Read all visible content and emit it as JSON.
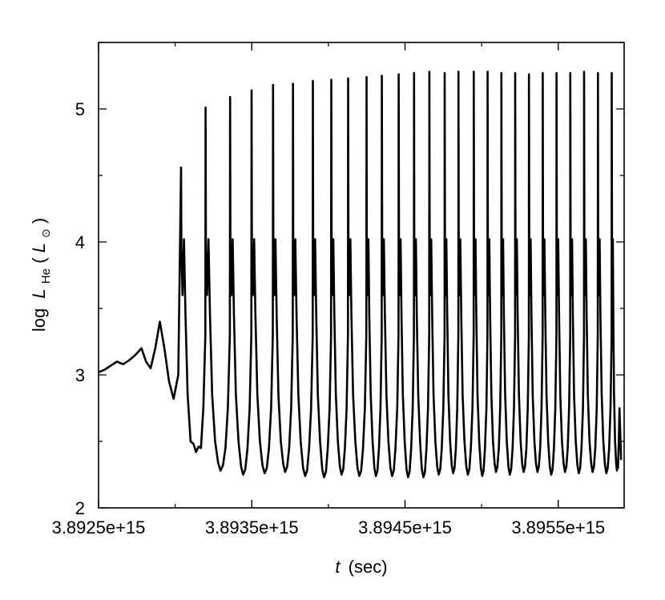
{
  "chart_data": {
    "type": "line",
    "xlabel": {
      "var": "t",
      "unit": "(sec)"
    },
    "ylabel": {
      "prefix": "log",
      "var": "L",
      "sub": "He",
      "open": "(",
      "unit_var": "L",
      "unit_sub": "⊙",
      "close": ")"
    },
    "xlim": [
      3892500000000000.0,
      3895930000000000.0
    ],
    "ylim": [
      2,
      5.5
    ],
    "xticks": [
      3892500000000000.0,
      3893500000000000.0,
      3894500000000000.0,
      3895500000000000.0
    ],
    "xtick_labels": [
      "3.8925e+15",
      "3.8935e+15",
      "3.8945e+15",
      "3.8955e+15"
    ],
    "yticks": [
      2,
      3,
      4,
      5
    ],
    "ytick_labels": [
      "2",
      "3",
      "4",
      "5"
    ],
    "grid": false,
    "line_color": "#000000",
    "series": [
      {
        "prelude": [
          [
            3892500000000000.0,
            3.02
          ],
          [
            3892540000000000.0,
            3.04
          ],
          [
            3892580000000000.0,
            3.07
          ],
          [
            3892620000000000.0,
            3.1
          ],
          [
            3892660000000000.0,
            3.08
          ],
          [
            3892700000000000.0,
            3.11
          ],
          [
            3892740000000000.0,
            3.15
          ],
          [
            3892780000000000.0,
            3.2
          ],
          [
            3892810000000000.0,
            3.1
          ],
          [
            3892840000000000.0,
            3.05
          ],
          [
            3892870000000000.0,
            3.2
          ],
          [
            3892900000000000.0,
            3.4
          ],
          [
            3892930000000000.0,
            3.2
          ],
          [
            3892960000000000.0,
            2.95
          ],
          [
            3892990000000000.0,
            2.82
          ],
          [
            3893020000000000.0,
            3.0
          ]
        ],
        "peak_times": [
          3893040000000000.0,
          3893200000000000.0,
          3893360000000000.0,
          3893500000000000.0,
          3893640000000000.0,
          3893770000000000.0,
          3893900000000000.0,
          3894020000000000.0,
          3894130000000000.0,
          3894250000000000.0,
          3894350000000000.0,
          3894460000000000.0,
          3894560000000000.0,
          3894660000000000.0,
          3894760000000000.0,
          3894850000000000.0,
          3894950000000000.0,
          3895040000000000.0,
          3895130000000000.0,
          3895220000000000.0,
          3895310000000000.0,
          3895400000000000.0,
          3895490000000000.0,
          3895580000000000.0,
          3895670000000000.0,
          3895760000000000.0,
          3895850000000000.0
        ],
        "peak_values": [
          4.56,
          5.01,
          5.09,
          5.14,
          5.18,
          5.19,
          5.21,
          5.22,
          5.23,
          5.24,
          5.25,
          5.26,
          5.27,
          5.28,
          5.27,
          5.28,
          5.28,
          5.28,
          5.27,
          5.27,
          5.26,
          5.27,
          5.27,
          5.27,
          5.28,
          5.27,
          5.27
        ],
        "trough_values": [
          2.42,
          2.28,
          2.25,
          2.26,
          2.27,
          2.24,
          2.23,
          2.25,
          2.24,
          2.24,
          2.24,
          2.23,
          2.23,
          2.25,
          2.26,
          2.25,
          2.24,
          2.27,
          2.25,
          2.27,
          2.27,
          2.25,
          2.27,
          2.26,
          2.27,
          2.26,
          2.28
        ],
        "end": [
          [
            3895890000000000.0,
            2.3
          ],
          [
            3895910000000000.0,
            2.36
          ]
        ]
      }
    ]
  }
}
